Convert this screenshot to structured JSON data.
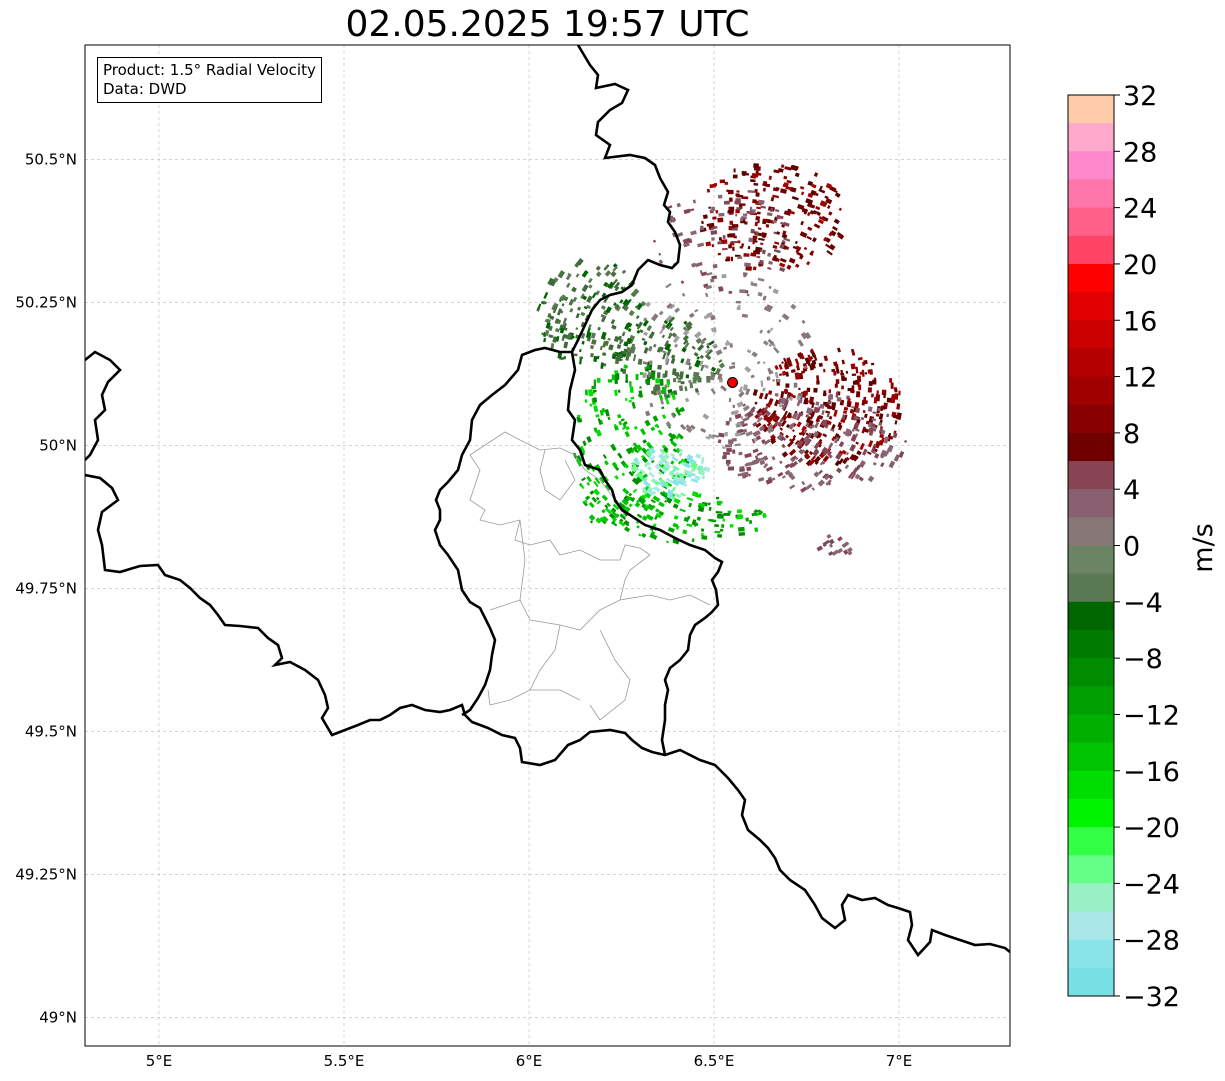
{
  "title": "02.05.2025 19:57 UTC",
  "info_box": {
    "product": "Product: 1.5° Radial Velocity",
    "data": "Data: DWD"
  },
  "map": {
    "x_ticks": [
      {
        "lon": 5.0,
        "label": "5°E"
      },
      {
        "lon": 5.5,
        "label": "5.5°E"
      },
      {
        "lon": 6.0,
        "label": "6°E"
      },
      {
        "lon": 6.5,
        "label": "6.5°E"
      },
      {
        "lon": 7.0,
        "label": "7°E"
      }
    ],
    "y_ticks": [
      {
        "lat": 50.5,
        "label": "50.5°N"
      },
      {
        "lat": 50.25,
        "label": "50.25°N"
      },
      {
        "lat": 50.0,
        "label": "50°N"
      },
      {
        "lat": 49.75,
        "label": "49.75°N"
      },
      {
        "lat": 49.5,
        "label": "49.5°N"
      },
      {
        "lat": 49.25,
        "label": "49.25°N"
      },
      {
        "lat": 49.0,
        "label": "49°N"
      }
    ],
    "extent": {
      "lon_min": 4.8,
      "lon_max": 7.3,
      "lat_min": 48.95,
      "lat_max": 50.7
    },
    "grid": true,
    "radar_site": {
      "lon": 6.55,
      "lat": 50.11
    }
  },
  "colorbar": {
    "unit": "m/s",
    "min": -32,
    "max": 32,
    "ticks": [
      "32",
      "28",
      "24",
      "20",
      "16",
      "12",
      "8",
      "4",
      "0",
      "−4",
      "−8",
      "−12",
      "−16",
      "−20",
      "−24",
      "−28",
      "−32"
    ],
    "colors_top_to_bottom": [
      "#ffccaa",
      "#ffaacc",
      "#ff88cc",
      "#ff77aa",
      "#ff5f88",
      "#ff4466",
      "#ff0000",
      "#e00000",
      "#cc0000",
      "#b40000",
      "#a00000",
      "#880000",
      "#700000",
      "#884455",
      "#886070",
      "#887777",
      "#6a8464",
      "#5a7a54",
      "#006600",
      "#007a00",
      "#008c00",
      "#009e00",
      "#00b000",
      "#00c400",
      "#00dd00",
      "#00f400",
      "#33ff44",
      "#66ff88",
      "#99f0c4",
      "#aae8e8",
      "#88e4e8",
      "#77e0e4"
    ]
  }
}
